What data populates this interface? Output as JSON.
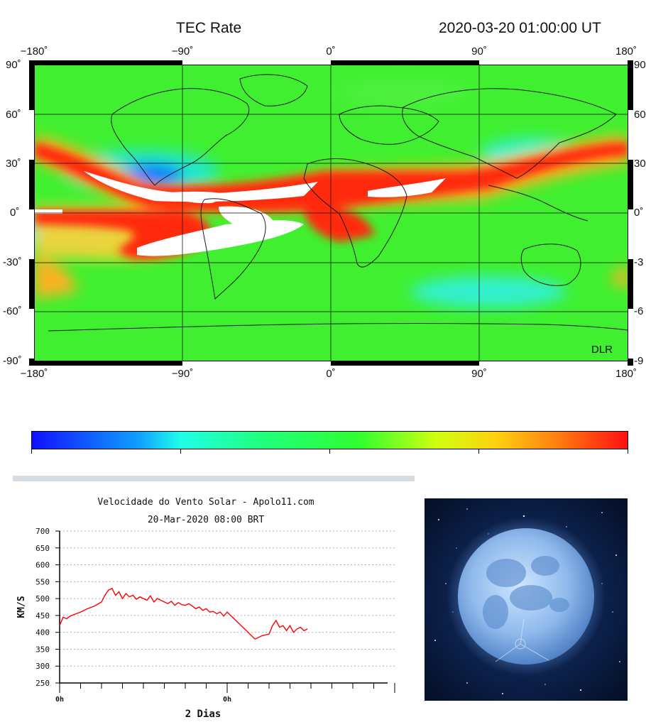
{
  "tec_map": {
    "title": "TEC Rate",
    "datetime": "2020-03-20  01:00:00 UT",
    "lon_ticks": [
      "−180˚",
      "−90˚",
      "0˚",
      "90˚",
      "180˚"
    ],
    "lat_ticks_left": [
      "90˚",
      "60˚",
      "30˚",
      "0˚",
      "-30˚",
      "-60˚",
      "-90˚"
    ],
    "lat_ticks_right": [
      "90",
      "60",
      "30",
      "0˚",
      "-3",
      "-6",
      "-9"
    ],
    "credit": "DLR",
    "colors": {
      "high": "#ff1a10",
      "mid": "#40ff30",
      "low": "#1040ff",
      "saturated": "#ffffff"
    }
  },
  "colorbar": {
    "low_color": "#1010ff",
    "high_color": "#ff1010"
  },
  "chart_data": {
    "type": "line",
    "title": "Velocidade do Vento Solar - Apolo11.com",
    "subtitle": "20-Mar-2020 08:00 BRT",
    "ylabel": "KM/S",
    "xlabel": "2 Dias",
    "ylim": [
      250,
      700
    ],
    "yticks": [
      "700",
      "650",
      "600",
      "550",
      "500",
      "450",
      "400",
      "350",
      "300",
      "250"
    ],
    "xlim": [
      0,
      48
    ],
    "xtick_labels": [
      {
        "x": 0,
        "label": "0h"
      },
      {
        "x": 24,
        "label": "0h"
      }
    ],
    "grid": true,
    "series": [
      {
        "color": "#ff0000",
        "x": [
          0,
          0.5,
          1,
          1.5,
          2,
          3,
          4,
          5,
          6,
          6.5,
          7,
          7.5,
          8,
          8.5,
          9,
          9.5,
          10,
          10.5,
          11,
          11.5,
          12,
          12.5,
          13,
          13.5,
          14,
          14.5,
          15,
          15.5,
          16,
          16.5,
          17,
          17.5,
          18,
          18.5,
          19,
          19.5,
          20,
          20.5,
          21,
          21.5,
          22,
          22.5,
          23,
          23.5,
          24,
          24.5,
          25,
          25.5,
          26,
          26.5,
          27,
          28,
          29,
          30,
          30.5,
          31,
          31.5,
          32,
          32.5,
          33,
          33.5,
          34,
          34.5,
          35,
          35.5
        ],
        "y": [
          420,
          445,
          440,
          448,
          452,
          460,
          470,
          478,
          490,
          510,
          525,
          530,
          510,
          520,
          500,
          515,
          505,
          510,
          498,
          505,
          500,
          495,
          508,
          490,
          500,
          495,
          490,
          485,
          492,
          480,
          488,
          482,
          480,
          485,
          478,
          470,
          475,
          465,
          470,
          460,
          462,
          455,
          460,
          448,
          460,
          450,
          440,
          430,
          420,
          410,
          400,
          380,
          390,
          395,
          420,
          435,
          415,
          420,
          405,
          420,
          400,
          410,
          415,
          405,
          410
        ]
      }
    ]
  },
  "moon_image": {
    "alt": ""
  }
}
